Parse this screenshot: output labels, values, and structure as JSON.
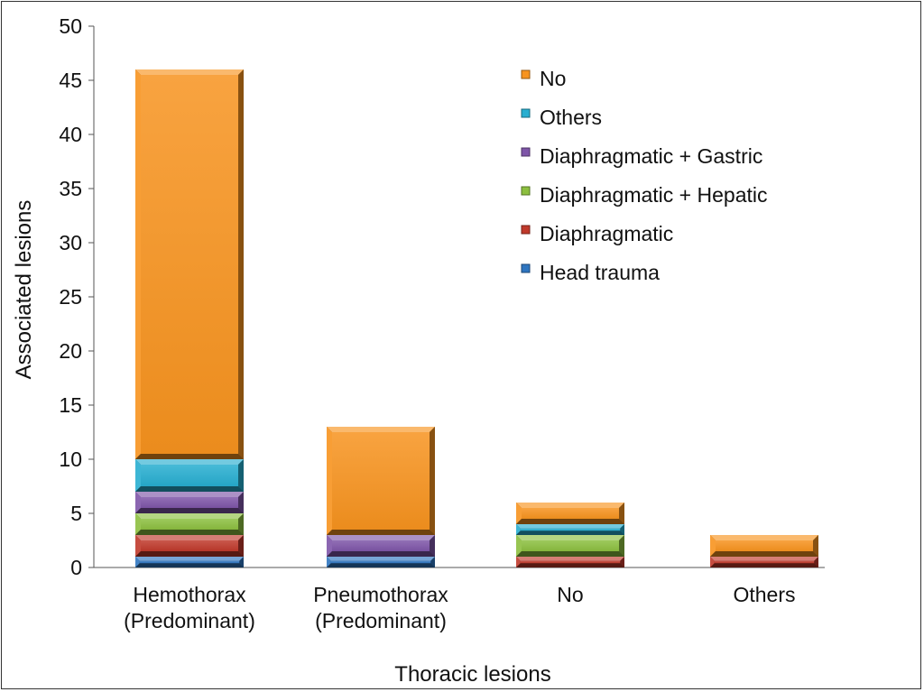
{
  "chart_data": {
    "type": "bar",
    "stacked": true,
    "xlabel": "Thoracic lesions",
    "ylabel": "Associated lesions",
    "ylim": [
      0,
      50
    ],
    "yticks": [
      0,
      5,
      10,
      15,
      20,
      25,
      30,
      35,
      40,
      45,
      50
    ],
    "categories": [
      [
        "Hemothorax",
        "(Predominant)"
      ],
      [
        "Pneumothorax",
        "(Predominant)"
      ],
      [
        "No"
      ],
      [
        "Others"
      ]
    ],
    "series": [
      {
        "name": "Head trauma",
        "color": "#2e75c0",
        "values": [
          1,
          1,
          0,
          0
        ]
      },
      {
        "name": "Diaphragmatic",
        "color": "#c0392b",
        "values": [
          2,
          0,
          1,
          1
        ]
      },
      {
        "name": "Diaphragmatic + Hepatic",
        "color": "#8cbf3f",
        "values": [
          2,
          0,
          2,
          0
        ]
      },
      {
        "name": "Diaphragmatic + Gastric",
        "color": "#7e55a8",
        "values": [
          2,
          2,
          0,
          0
        ]
      },
      {
        "name": "Others",
        "color": "#27aed0",
        "values": [
          3,
          0,
          1,
          0
        ]
      },
      {
        "name": "No",
        "color": "#f7931e",
        "values": [
          36,
          10,
          2,
          2
        ]
      }
    ],
    "legend_position": "top-right",
    "grid": false
  }
}
